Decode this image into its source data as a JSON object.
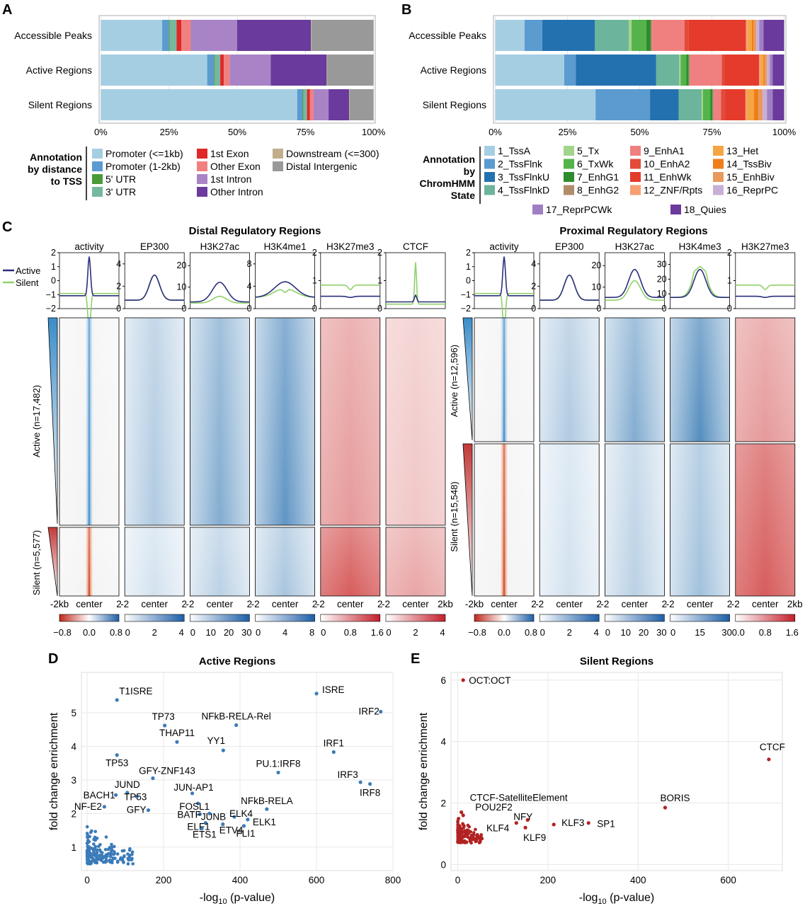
{
  "panel_letters": {
    "a": "A",
    "b": "B",
    "c": "C",
    "d": "D",
    "e": "E"
  },
  "colors": {
    "active_line": "#2b2f7c",
    "silent_line": "#8fd16b",
    "blue_dark": "#2b6eae",
    "red_dark": "#c02a2a",
    "scatter_d": "#3b7bb8",
    "scatter_e": "#b22222"
  },
  "panel_a": {
    "categories": [
      "Accessible Peaks",
      "Active Regions",
      "Silent Regions"
    ],
    "series": [
      {
        "name": "Promoter (<=1kb)",
        "color": "#a6cee3",
        "values": [
          22.5,
          39,
          72
        ]
      },
      {
        "name": "Promoter (1-2kb)",
        "color": "#5b9bd0",
        "values": [
          2.5,
          2.5,
          2
        ]
      },
      {
        "name": "5' UTR",
        "color": "#4b9a38",
        "values": [
          0.3,
          0.3,
          0.3
        ]
      },
      {
        "name": "3' UTR",
        "color": "#76b89e",
        "values": [
          2.5,
          2,
          1.3
        ]
      },
      {
        "name": "1st Exon",
        "color": "#e02828",
        "values": [
          1.7,
          1.3,
          1
        ]
      },
      {
        "name": "Other Exon",
        "color": "#f08080",
        "values": [
          3.5,
          2.2,
          1.4
        ]
      },
      {
        "name": "1st Intron",
        "color": "#a884c6",
        "values": [
          17,
          15,
          5.5
        ]
      },
      {
        "name": "Other Intron",
        "color": "#6a3a9c",
        "values": [
          27,
          20.5,
          7.5
        ]
      },
      {
        "name": "Downstream (<=300)",
        "color": "#c2ae8c",
        "values": [
          0.2,
          0.2,
          0.2
        ]
      },
      {
        "name": "Distal Intergenic",
        "color": "#999999",
        "values": [
          22.8,
          17,
          8.8
        ]
      }
    ],
    "xticks": [
      "0%",
      "25%",
      "50%",
      "75%",
      "100%"
    ],
    "legend_title": [
      "Annotation",
      "by distance",
      "to TSS"
    ]
  },
  "panel_b": {
    "categories": [
      "Accessible Peaks",
      "Active Regions",
      "Silent Regions"
    ],
    "series": [
      {
        "name": "1_TssA",
        "color": "#a6cee3",
        "values": [
          10,
          24,
          35
        ]
      },
      {
        "name": "2_TssFlnk",
        "color": "#5b9bd0",
        "values": [
          6,
          4,
          19
        ]
      },
      {
        "name": "3_TssFlnkU",
        "color": "#2471b0",
        "values": [
          18,
          28,
          10
        ]
      },
      {
        "name": "4_TssFlnkD",
        "color": "#6cb49c",
        "values": [
          11.5,
          8,
          8
        ]
      },
      {
        "name": "5_Tx",
        "color": "#a3d48b",
        "values": [
          1,
          0.5,
          0.5
        ]
      },
      {
        "name": "6_TxWk",
        "color": "#54b34a",
        "values": [
          5,
          2,
          2.5
        ]
      },
      {
        "name": "7_EnhG1",
        "color": "#2e8c2e",
        "values": [
          1.5,
          0.8,
          0.8
        ]
      },
      {
        "name": "8_EnhG2",
        "color": "#b08c6a",
        "values": [
          0.5,
          0.5,
          0.5
        ]
      },
      {
        "name": "9_EnhA1",
        "color": "#f08080",
        "values": [
          11,
          11,
          2.5
        ]
      },
      {
        "name": "10_EnhA2",
        "color": "#e34a3a",
        "values": [
          1.5,
          1,
          1.5
        ]
      },
      {
        "name": "11_EnhWk",
        "color": "#e43b2c",
        "values": [
          19.5,
          12,
          7
        ]
      },
      {
        "name": "12_ZNF/Rpts",
        "color": "#f69f72",
        "values": [
          0.5,
          0.5,
          0.5
        ]
      },
      {
        "name": "13_Het",
        "color": "#f5a543",
        "values": [
          1.5,
          1,
          2.5
        ]
      },
      {
        "name": "14_TssBiv",
        "color": "#ef7d1a",
        "values": [
          0.5,
          0.5,
          1.5
        ]
      },
      {
        "name": "15_EnhBiv",
        "color": "#e89a5c",
        "values": [
          1,
          0.7,
          1.5
        ]
      },
      {
        "name": "16_ReprPC",
        "color": "#c8aed6",
        "values": [
          1,
          1,
          1.5
        ]
      },
      {
        "name": "17_ReprPCWk",
        "color": "#9f7fc4",
        "values": [
          1.5,
          1,
          2
        ]
      },
      {
        "name": "18_Quies",
        "color": "#6a3a9c",
        "values": [
          7,
          4,
          4
        ]
      }
    ],
    "xticks": [
      "0%",
      "25%",
      "50%",
      "75%",
      "100%"
    ],
    "legend_title": [
      "Annotation",
      "by",
      "ChromHMM",
      "State"
    ]
  },
  "panel_c": {
    "distal_title": "Distal Regulatory Regions",
    "proximal_title": "Proximal Regulatory Regions",
    "legend_active": "Active",
    "legend_silent": "Silent",
    "distal_tracks": [
      {
        "title": "activity",
        "yticks": [
          "2",
          "1",
          "0",
          "−1",
          "−2"
        ],
        "ymin": -2,
        "ymax": 2,
        "active": "spike",
        "silent": "dip",
        "scale": [
          "−0.8",
          "0.0",
          "0.8"
        ],
        "map": "div"
      },
      {
        "title": "EP300",
        "yticks": [
          "4",
          "2",
          "0"
        ],
        "ymin": 0,
        "ymax": 5,
        "active": "bump",
        "silent": "bump",
        "scale": [
          "0",
          "2",
          "4"
        ],
        "map": "blue"
      },
      {
        "title": "H3K27ac",
        "yticks": [
          "20",
          "10",
          "0"
        ],
        "ymin": 0,
        "ymax": 26,
        "active": "wide",
        "silent": "wide-low",
        "scale": [
          "0",
          "10",
          "20",
          "30"
        ],
        "map": "blue"
      },
      {
        "title": "H3K4me1",
        "yticks": [
          "8",
          "4",
          "0"
        ],
        "ymin": 0,
        "ymax": 10,
        "active": "plateau",
        "silent": "dip-plateau",
        "scale": [
          "0",
          "4",
          "8"
        ],
        "map": "blue"
      },
      {
        "title": "H3K27me3",
        "yticks": [
          "2",
          "1",
          "0"
        ],
        "ymin": 0,
        "ymax": 2,
        "active": "flat-low",
        "silent": "flat-high",
        "scale": [
          "0",
          "0.8",
          "1.6"
        ],
        "map": "red"
      },
      {
        "title": "CTCF",
        "yticks": [
          "2",
          "1",
          "0"
        ],
        "ymin": 0,
        "ymax": 2,
        "active": "small-spike",
        "silent": "tall-spike",
        "scale": [
          "0",
          "2",
          "4"
        ],
        "map": "red"
      }
    ],
    "proximal_tracks": [
      {
        "title": "activity",
        "yticks": [
          "2",
          "1",
          "0",
          "−1",
          "−2"
        ],
        "ymin": -2,
        "ymax": 2,
        "active": "spike",
        "silent": "dip",
        "scale": [
          "−0.8",
          "0.0",
          "0.8"
        ],
        "map": "div"
      },
      {
        "title": "EP300",
        "yticks": [
          "4",
          "2",
          "0"
        ],
        "ymin": 0,
        "ymax": 5,
        "active": "bump",
        "silent": "bump",
        "scale": [
          "0",
          "2",
          "4"
        ],
        "map": "blue"
      },
      {
        "title": "H3K27ac",
        "yticks": [
          "20",
          "10",
          "0"
        ],
        "ymin": 0,
        "ymax": 26,
        "active": "peak",
        "silent": "peak-low",
        "scale": [
          "0",
          "10",
          "20",
          "30"
        ],
        "map": "blue"
      },
      {
        "title": "H3K4me3",
        "yticks": [
          "30",
          "20",
          "10",
          "0"
        ],
        "ymin": 0,
        "ymax": 38,
        "active": "peak",
        "silent": "twin",
        "scale": [
          "0",
          "15",
          "30"
        ],
        "map": "blue"
      },
      {
        "title": "H3K27me3",
        "yticks": [
          "2",
          "1",
          "0"
        ],
        "ymin": 0,
        "ymax": 2,
        "active": "flat-low",
        "silent": "flat-high",
        "scale": [
          "0.0",
          "0.8",
          "1.6"
        ],
        "map": "red"
      }
    ],
    "distal_active_label": "Active (n=17,482)",
    "distal_silent_label": "Silent (n=5,577)",
    "proximal_active_label": "Active (n=12,596)",
    "proximal_silent_label": "Silent (n=15,548)",
    "xaxis_first": [
      "-2kb",
      "center",
      "2"
    ],
    "xaxis_mid": [
      "-2",
      "center",
      "2"
    ],
    "xaxis_last": [
      "-2",
      "center",
      "2kb"
    ]
  },
  "chart_data": [
    {
      "type": "scatter",
      "title": "Active Regions",
      "xlabel": "-log10 (p-value)",
      "ylabel": "fold change enrichment",
      "xlim": [
        -15,
        800
      ],
      "ylim": [
        0.3,
        6.2
      ],
      "xticks": [
        "0",
        "200",
        "400",
        "600",
        "800"
      ],
      "yticks": [
        "1",
        "2",
        "3",
        "4",
        "5"
      ],
      "labeled_points": [
        {
          "label": "T1ISRE",
          "x": 78,
          "y": 5.38
        },
        {
          "label": "ISRE",
          "x": 600,
          "y": 5.57
        },
        {
          "label": "IRF2",
          "x": 768,
          "y": 5.03
        },
        {
          "label": "NFkB-RELA-Rel",
          "x": 390,
          "y": 4.63
        },
        {
          "label": "TP73",
          "x": 203,
          "y": 4.62
        },
        {
          "label": "THAP11",
          "x": 235,
          "y": 4.13
        },
        {
          "label": "YY1",
          "x": 356,
          "y": 3.88
        },
        {
          "label": "IRF1",
          "x": 645,
          "y": 3.83
        },
        {
          "label": "TP53",
          "x": 78,
          "y": 3.74
        },
        {
          "label": "PU.1:IRF8",
          "x": 500,
          "y": 3.22
        },
        {
          "label": "GFY-ZNF143",
          "x": 172,
          "y": 3.05
        },
        {
          "label": "IRF3",
          "x": 715,
          "y": 2.93
        },
        {
          "label": "IRF8",
          "x": 740,
          "y": 2.88
        },
        {
          "label": "JUND",
          "x": 105,
          "y": 2.62
        },
        {
          "label": "BACH1",
          "x": 75,
          "y": 2.55
        },
        {
          "label": "TP53",
          "x": 130,
          "y": 2.5
        },
        {
          "label": "JUN-AP1",
          "x": 275,
          "y": 2.6
        },
        {
          "label": "NF-E2",
          "x": 45,
          "y": 2.2
        },
        {
          "label": "GFY",
          "x": 160,
          "y": 2.1
        },
        {
          "label": "FOSL1",
          "x": 290,
          "y": 2.3
        },
        {
          "label": "JUNB",
          "x": 320,
          "y": 2.0
        },
        {
          "label": "NFkB-RELA",
          "x": 470,
          "y": 2.13
        },
        {
          "label": "ELK4",
          "x": 385,
          "y": 1.9
        },
        {
          "label": "BATF",
          "x": 295,
          "y": 1.98
        },
        {
          "label": "ELF1",
          "x": 310,
          "y": 1.72
        },
        {
          "label": "ETV4",
          "x": 355,
          "y": 1.68
        },
        {
          "label": "ELK1",
          "x": 420,
          "y": 1.82
        },
        {
          "label": "FLI1",
          "x": 410,
          "y": 1.63
        },
        {
          "label": "ETS1",
          "x": 300,
          "y": 1.55
        }
      ]
    },
    {
      "type": "scatter",
      "title": "Silent Regions",
      "xlabel": "-log10 (p-value)",
      "ylabel": "fold change enrichment",
      "xlim": [
        -15,
        720
      ],
      "ylim": [
        -0.2,
        6.25
      ],
      "xticks": [
        "0",
        "200",
        "400",
        "600"
      ],
      "yticks": [
        "0",
        "2",
        "4",
        "6"
      ],
      "labeled_points": [
        {
          "label": "OCT:OCT",
          "x": 12,
          "y": 6.0
        },
        {
          "label": "CTCF",
          "x": 690,
          "y": 3.42
        },
        {
          "label": "BORIS",
          "x": 460,
          "y": 1.85
        },
        {
          "label": "CTCF-SatelliteElement",
          "x": 8,
          "y": 1.7
        },
        {
          "label": "POU2F2",
          "x": 12,
          "y": 1.6
        },
        {
          "label": "NFY",
          "x": 155,
          "y": 1.45
        },
        {
          "label": "KLF3",
          "x": 213,
          "y": 1.3
        },
        {
          "label": "SP1",
          "x": 290,
          "y": 1.35
        },
        {
          "label": "KLF4",
          "x": 130,
          "y": 1.35
        },
        {
          "label": "KLF9",
          "x": 150,
          "y": 1.2
        }
      ]
    }
  ]
}
